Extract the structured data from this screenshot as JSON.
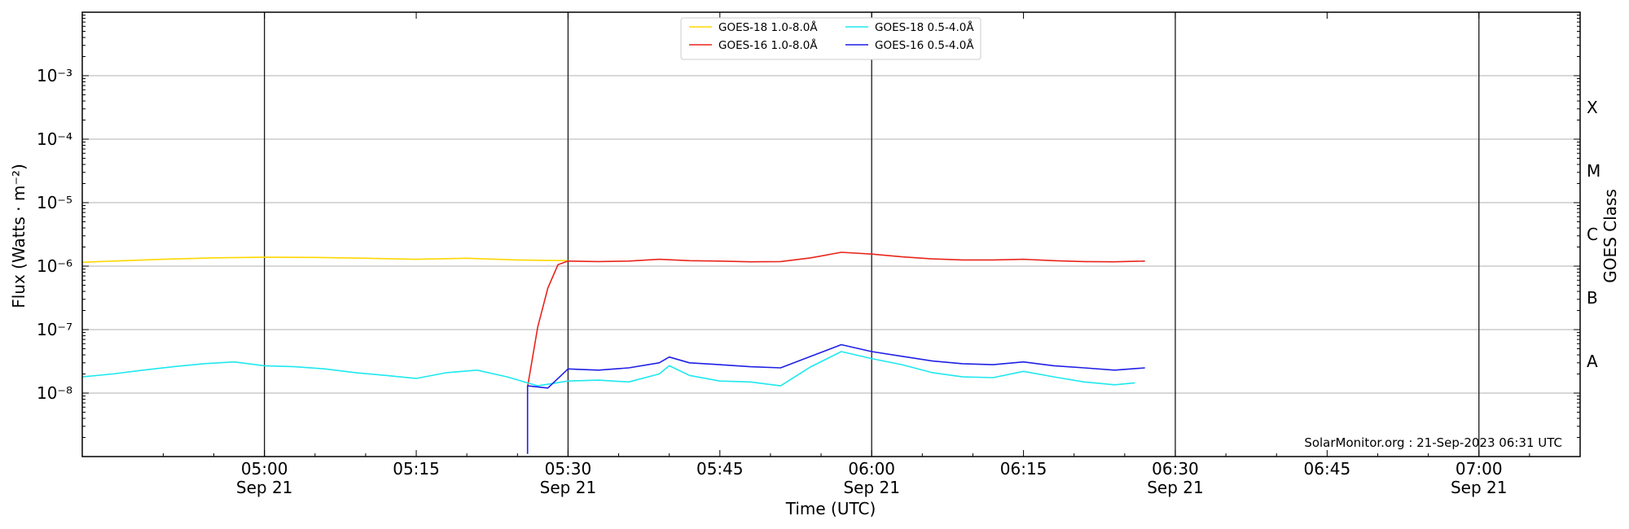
{
  "chart_data": {
    "type": "line",
    "title": "",
    "xlabel": "Time (UTC)",
    "ylabel": "Flux (Watts · m⁻²)",
    "y2label": "GOES Class",
    "y_scale": "log",
    "ylim": [
      1e-09,
      0.01
    ],
    "xlim": [
      "04:42",
      "07:10"
    ],
    "grid": "horizontal at decades",
    "vertical_lines": [
      "05:00",
      "05:30",
      "06:00",
      "06:30",
      "07:00"
    ],
    "x_ticks": [
      {
        "time": "05:00",
        "line1": "05:00",
        "line2": "Sep 21"
      },
      {
        "time": "05:15",
        "line1": "05:15",
        "line2": ""
      },
      {
        "time": "05:30",
        "line1": "05:30",
        "line2": "Sep 21"
      },
      {
        "time": "05:45",
        "line1": "05:45",
        "line2": ""
      },
      {
        "time": "06:00",
        "line1": "06:00",
        "line2": "Sep 21"
      },
      {
        "time": "06:15",
        "line1": "06:15",
        "line2": ""
      },
      {
        "time": "06:30",
        "line1": "06:30",
        "line2": "Sep 21"
      },
      {
        "time": "06:45",
        "line1": "06:45",
        "line2": ""
      },
      {
        "time": "07:00",
        "line1": "07:00",
        "line2": "Sep 21"
      }
    ],
    "y_ticks": [
      {
        "exp": -8,
        "label": "10⁻⁸"
      },
      {
        "exp": -7,
        "label": "10⁻⁷"
      },
      {
        "exp": -6,
        "label": "10⁻⁶"
      },
      {
        "exp": -5,
        "label": "10⁻⁵"
      },
      {
        "exp": -4,
        "label": "10⁻⁴"
      },
      {
        "exp": -3,
        "label": "10⁻³"
      }
    ],
    "goes_classes": [
      {
        "label": "A",
        "flux": 3.16e-08
      },
      {
        "label": "B",
        "flux": 3.16e-07
      },
      {
        "label": "C",
        "flux": 3.16e-06
      },
      {
        "label": "M",
        "flux": 3.16e-05
      },
      {
        "label": "X",
        "flux": 0.000316
      }
    ],
    "legend_position": "top-center",
    "credit": "SolarMonitor.org : 21-Sep-2023 06:31 UTC",
    "series": [
      {
        "name": "GOES-18 1.0-8.0Å",
        "color": "#ffd700",
        "points": [
          [
            "04:42",
            1.15e-06
          ],
          [
            "04:45",
            1.2e-06
          ],
          [
            "04:50",
            1.28e-06
          ],
          [
            "04:55",
            1.35e-06
          ],
          [
            "05:00",
            1.38e-06
          ],
          [
            "05:05",
            1.37e-06
          ],
          [
            "05:10",
            1.33e-06
          ],
          [
            "05:15",
            1.28e-06
          ],
          [
            "05:20",
            1.33e-06
          ],
          [
            "05:25",
            1.25e-06
          ],
          [
            "05:30",
            1.22e-06
          ]
        ]
      },
      {
        "name": "GOES-16 1.0-8.0Å",
        "color": "#e8251c",
        "points": [
          [
            "05:26",
            1.25e-08
          ],
          [
            "05:27",
            1.1e-07
          ],
          [
            "05:28",
            4.5e-07
          ],
          [
            "05:29",
            1.05e-06
          ],
          [
            "05:30",
            1.2e-06
          ],
          [
            "05:33",
            1.18e-06
          ],
          [
            "05:36",
            1.2e-06
          ],
          [
            "05:39",
            1.28e-06
          ],
          [
            "05:42",
            1.22e-06
          ],
          [
            "05:45",
            1.2e-06
          ],
          [
            "05:48",
            1.17e-06
          ],
          [
            "05:51",
            1.18e-06
          ],
          [
            "05:54",
            1.35e-06
          ],
          [
            "05:57",
            1.65e-06
          ],
          [
            "06:00",
            1.55e-06
          ],
          [
            "06:03",
            1.4e-06
          ],
          [
            "06:06",
            1.3e-06
          ],
          [
            "06:09",
            1.25e-06
          ],
          [
            "06:12",
            1.25e-06
          ],
          [
            "06:15",
            1.28e-06
          ],
          [
            "06:18",
            1.22e-06
          ],
          [
            "06:21",
            1.18e-06
          ],
          [
            "06:24",
            1.17e-06
          ],
          [
            "06:27",
            1.2e-06
          ]
        ]
      },
      {
        "name": "GOES-18 0.5-4.0Å",
        "color": "#1ee8ee",
        "points": [
          [
            "04:42",
            1.8e-08
          ],
          [
            "04:45",
            2e-08
          ],
          [
            "04:48",
            2.3e-08
          ],
          [
            "04:51",
            2.6e-08
          ],
          [
            "04:54",
            2.9e-08
          ],
          [
            "04:57",
            3.1e-08
          ],
          [
            "05:00",
            2.7e-08
          ],
          [
            "05:03",
            2.6e-08
          ],
          [
            "05:06",
            2.4e-08
          ],
          [
            "05:09",
            2.1e-08
          ],
          [
            "05:12",
            1.9e-08
          ],
          [
            "05:15",
            1.7e-08
          ],
          [
            "05:18",
            2.1e-08
          ],
          [
            "05:21",
            2.3e-08
          ],
          [
            "05:24",
            1.8e-08
          ],
          [
            "05:27",
            1.3e-08
          ],
          [
            "05:30",
            1.55e-08
          ],
          [
            "05:33",
            1.6e-08
          ],
          [
            "05:36",
            1.5e-08
          ],
          [
            "05:39",
            2e-08
          ],
          [
            "05:40",
            2.7e-08
          ],
          [
            "05:42",
            1.9e-08
          ],
          [
            "05:45",
            1.55e-08
          ],
          [
            "05:48",
            1.5e-08
          ],
          [
            "05:51",
            1.3e-08
          ],
          [
            "05:54",
            2.6e-08
          ],
          [
            "05:57",
            4.5e-08
          ],
          [
            "06:00",
            3.5e-08
          ],
          [
            "06:03",
            2.8e-08
          ],
          [
            "06:06",
            2.1e-08
          ],
          [
            "06:09",
            1.8e-08
          ],
          [
            "06:12",
            1.75e-08
          ],
          [
            "06:15",
            2.2e-08
          ],
          [
            "06:18",
            1.8e-08
          ],
          [
            "06:21",
            1.5e-08
          ],
          [
            "06:24",
            1.35e-08
          ],
          [
            "06:26",
            1.45e-08
          ]
        ]
      },
      {
        "name": "GOES-16 0.5-4.0Å",
        "color": "#1f1fe6",
        "points": [
          [
            "05:26",
            1.1e-09
          ],
          [
            "05:26",
            1.3e-08
          ],
          [
            "05:28",
            1.2e-08
          ],
          [
            "05:30",
            2.4e-08
          ],
          [
            "05:33",
            2.3e-08
          ],
          [
            "05:36",
            2.5e-08
          ],
          [
            "05:39",
            3e-08
          ],
          [
            "05:40",
            3.7e-08
          ],
          [
            "05:42",
            3e-08
          ],
          [
            "05:45",
            2.8e-08
          ],
          [
            "05:48",
            2.6e-08
          ],
          [
            "05:51",
            2.5e-08
          ],
          [
            "05:54",
            3.8e-08
          ],
          [
            "05:57",
            5.8e-08
          ],
          [
            "06:00",
            4.5e-08
          ],
          [
            "06:03",
            3.8e-08
          ],
          [
            "06:06",
            3.2e-08
          ],
          [
            "06:09",
            2.9e-08
          ],
          [
            "06:12",
            2.8e-08
          ],
          [
            "06:15",
            3.1e-08
          ],
          [
            "06:18",
            2.7e-08
          ],
          [
            "06:21",
            2.5e-08
          ],
          [
            "06:24",
            2.3e-08
          ],
          [
            "06:27",
            2.5e-08
          ]
        ]
      }
    ]
  }
}
